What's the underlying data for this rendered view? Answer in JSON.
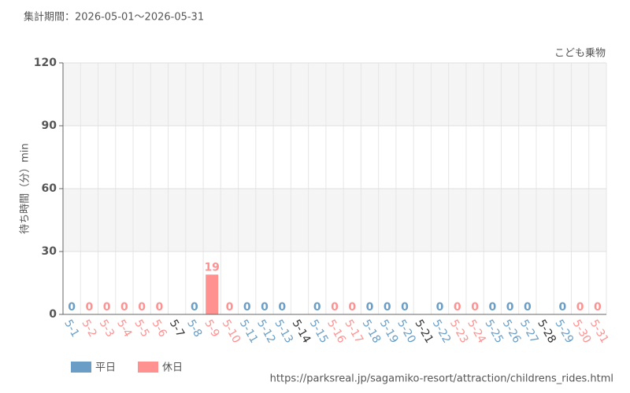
{
  "chart_data": {
    "type": "bar",
    "title": "集計期間：2026-05-01～2026-05-31",
    "subtitle": "こども乗物",
    "y_label": "待ち時間（分）min",
    "source": "https://parksreal.jp/sagamiko-resort/attraction/childrens_rides.html",
    "categories": [
      "5-1",
      "5-2",
      "5-3",
      "5-4",
      "5-5",
      "5-6",
      "5-7",
      "5-8",
      "5-9",
      "5-10",
      "5-11",
      "5-12",
      "5-13",
      "5-14",
      "5-15",
      "5-16",
      "5-17",
      "5-18",
      "5-19",
      "5-20",
      "5-21",
      "5-22",
      "5-23",
      "5-24",
      "5-25",
      "5-26",
      "5-27",
      "5-28",
      "5-29",
      "5-30",
      "5-31"
    ],
    "series": [
      {
        "name": "平日",
        "color": "#6a9ec6",
        "values": [
          0,
          null,
          null,
          null,
          null,
          null,
          null,
          0,
          null,
          null,
          0,
          0,
          0,
          null,
          0,
          null,
          null,
          0,
          0,
          0,
          null,
          0,
          null,
          null,
          0,
          0,
          0,
          null,
          0,
          null,
          null
        ]
      },
      {
        "name": "休日",
        "color": "#ff9191",
        "values": [
          null,
          0,
          0,
          0,
          0,
          0,
          null,
          null,
          19,
          0,
          null,
          null,
          null,
          null,
          null,
          0,
          0,
          null,
          null,
          null,
          null,
          null,
          0,
          0,
          null,
          null,
          null,
          null,
          null,
          0,
          0
        ]
      }
    ],
    "ylim": [
      0,
      120
    ],
    "yticks": [
      0,
      30,
      60,
      90,
      120
    ],
    "grid": true
  }
}
